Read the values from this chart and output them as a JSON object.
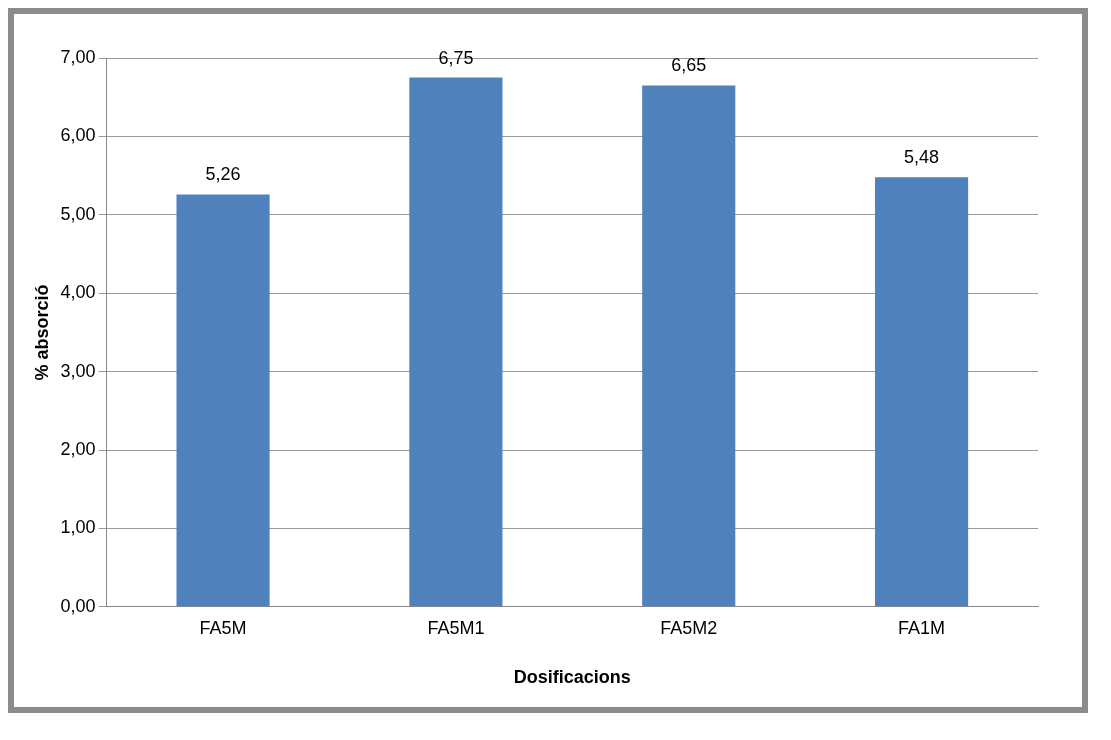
{
  "chart_data": {
    "type": "bar",
    "xlabel": "Dosificacions",
    "ylabel": "% absorció",
    "categories": [
      "FA5M",
      "FA5M1",
      "FA5M2",
      "FA1M"
    ],
    "values": [
      5.26,
      6.75,
      6.65,
      5.48
    ],
    "value_labels": [
      "5,26",
      "6,75",
      "6,65",
      "5,48"
    ],
    "color": "#4f81bd",
    "ylim": [
      0,
      7
    ],
    "yticks": [
      {
        "value": 0,
        "label": "0,00"
      },
      {
        "value": 1,
        "label": "1,00"
      },
      {
        "value": 2,
        "label": "2,00"
      },
      {
        "value": 3,
        "label": "3,00"
      },
      {
        "value": 4,
        "label": "4,00"
      },
      {
        "value": 5,
        "label": "5,00"
      },
      {
        "value": 6,
        "label": "6,00"
      },
      {
        "value": 7,
        "label": "7,00"
      }
    ],
    "grid": "y",
    "legend": false
  }
}
